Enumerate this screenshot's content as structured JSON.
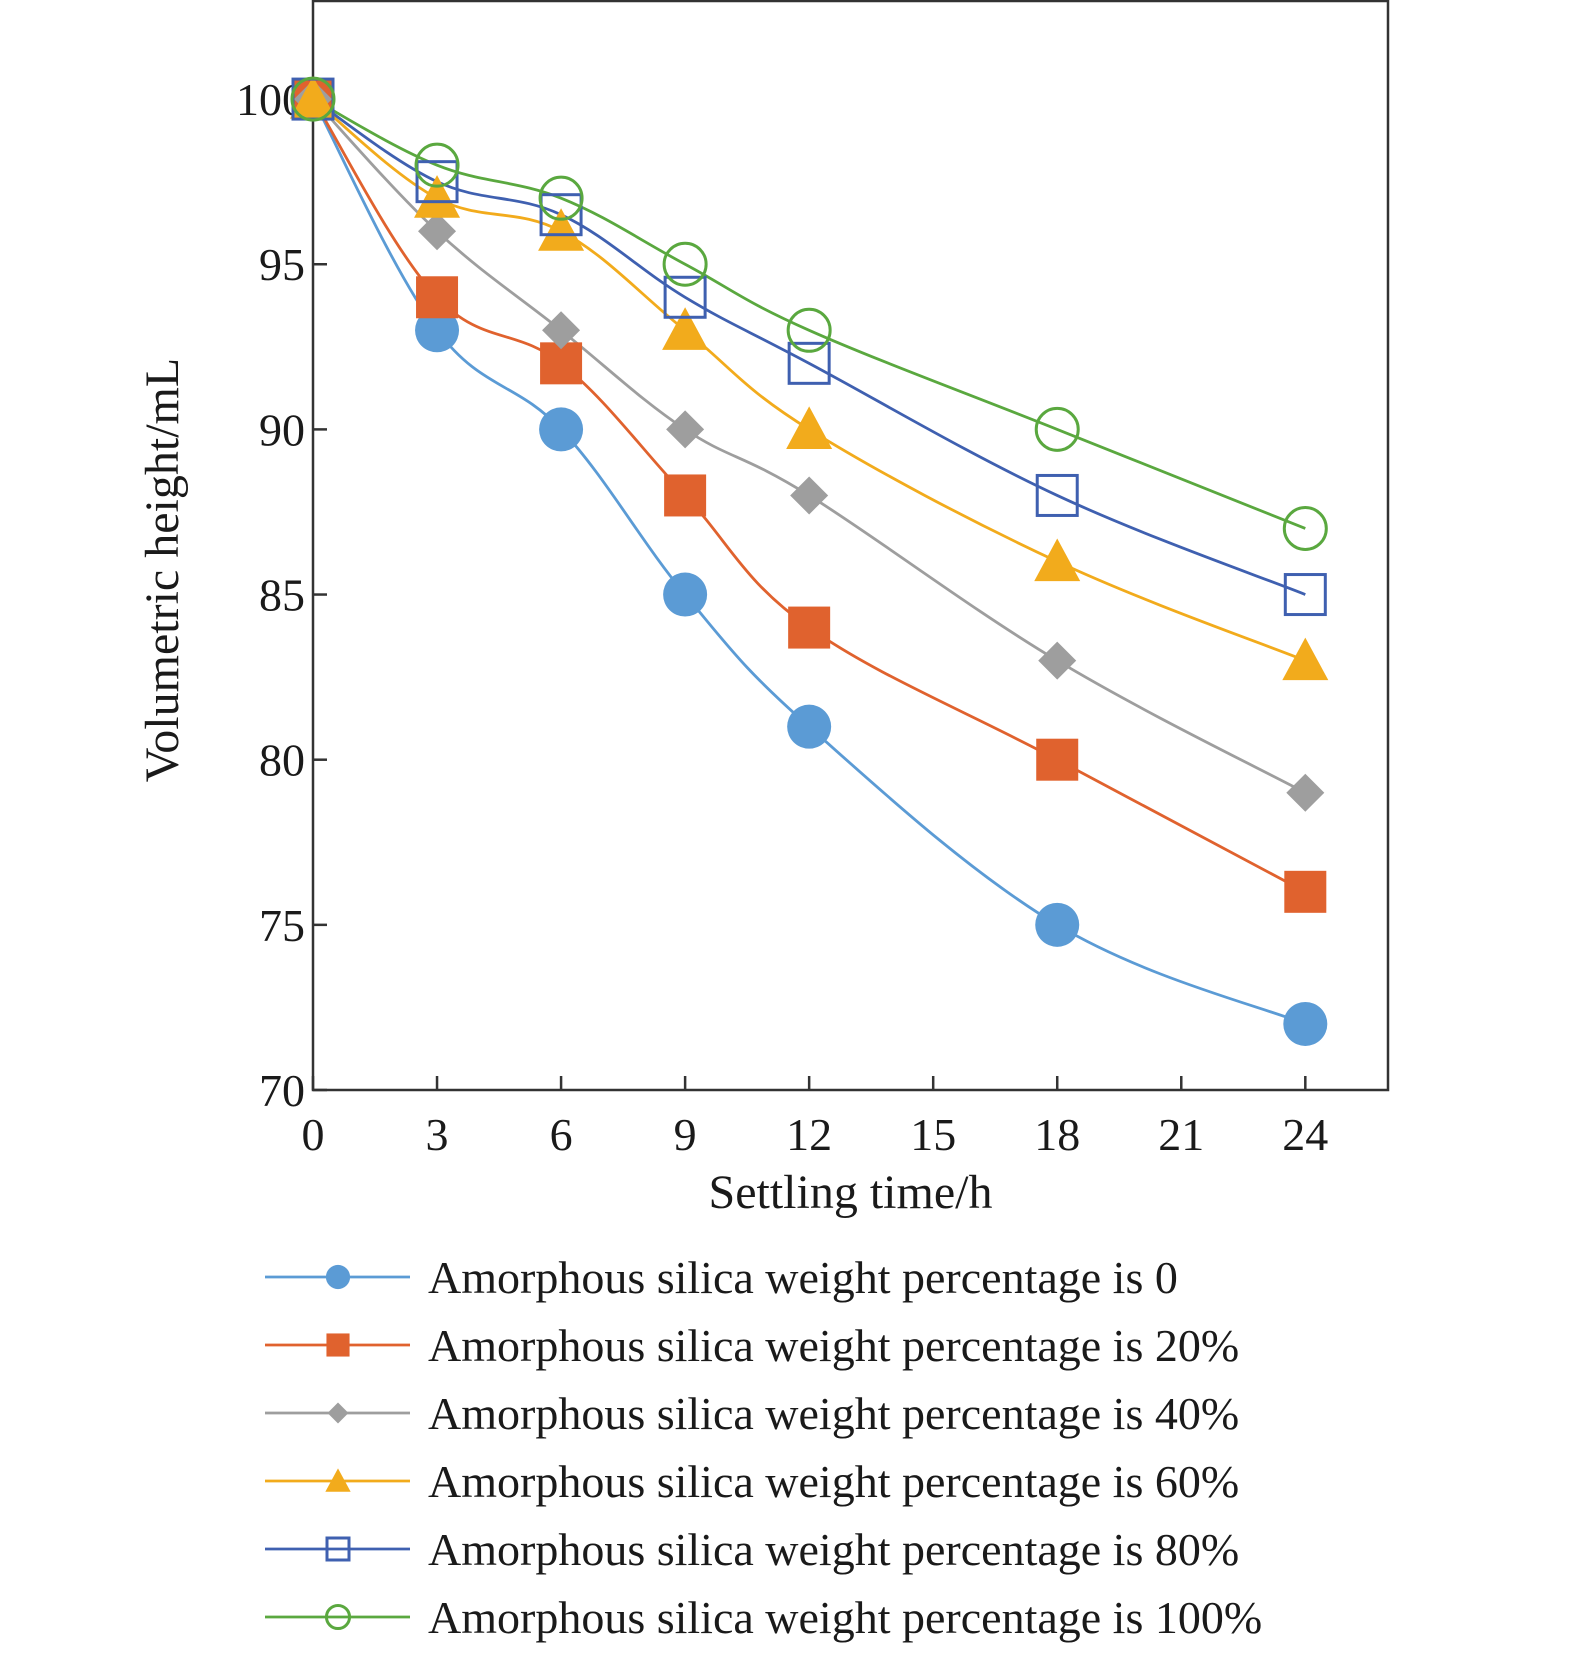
{
  "chart_data": {
    "type": "line",
    "xlabel": "Settling time/h",
    "ylabel": "Volumetric height/mL",
    "xlim": [
      0,
      26
    ],
    "ylim": [
      70,
      103
    ],
    "xticks": [
      0,
      3,
      6,
      9,
      12,
      15,
      18,
      21,
      24
    ],
    "yticks": [
      70,
      75,
      80,
      85,
      90,
      95,
      100
    ],
    "x": [
      0,
      3,
      6,
      9,
      12,
      18,
      24
    ],
    "legend_position": "bottom",
    "grid": false,
    "series": [
      {
        "name": "Amorphous silica weight percentage is 0",
        "color": "#5b9bd5",
        "marker": "circle-filled",
        "values": [
          100,
          93,
          90,
          85,
          81,
          75,
          72
        ]
      },
      {
        "name": "Amorphous silica weight percentage is 20%",
        "color": "#e0622e",
        "marker": "square-filled",
        "values": [
          100,
          94,
          92,
          88,
          84,
          80,
          76
        ]
      },
      {
        "name": "Amorphous silica weight percentage is 40%",
        "color": "#9e9e9e",
        "marker": "diamond-filled",
        "values": [
          100,
          96,
          93,
          90,
          88,
          83,
          79
        ]
      },
      {
        "name": "Amorphous silica weight percentage is 60%",
        "color": "#f2ab1c",
        "marker": "triangle-filled",
        "values": [
          100,
          97,
          96,
          93,
          90,
          86,
          83
        ]
      },
      {
        "name": "Amorphous silica weight percentage is 80%",
        "color": "#3f60b0",
        "marker": "square-open",
        "values": [
          100,
          97.5,
          96.5,
          94,
          92,
          88,
          85
        ]
      },
      {
        "name": "Amorphous silica weight percentage is 100%",
        "color": "#5aa83f",
        "marker": "circle-open",
        "values": [
          100,
          98,
          97,
          95,
          93,
          90,
          87
        ]
      }
    ]
  }
}
